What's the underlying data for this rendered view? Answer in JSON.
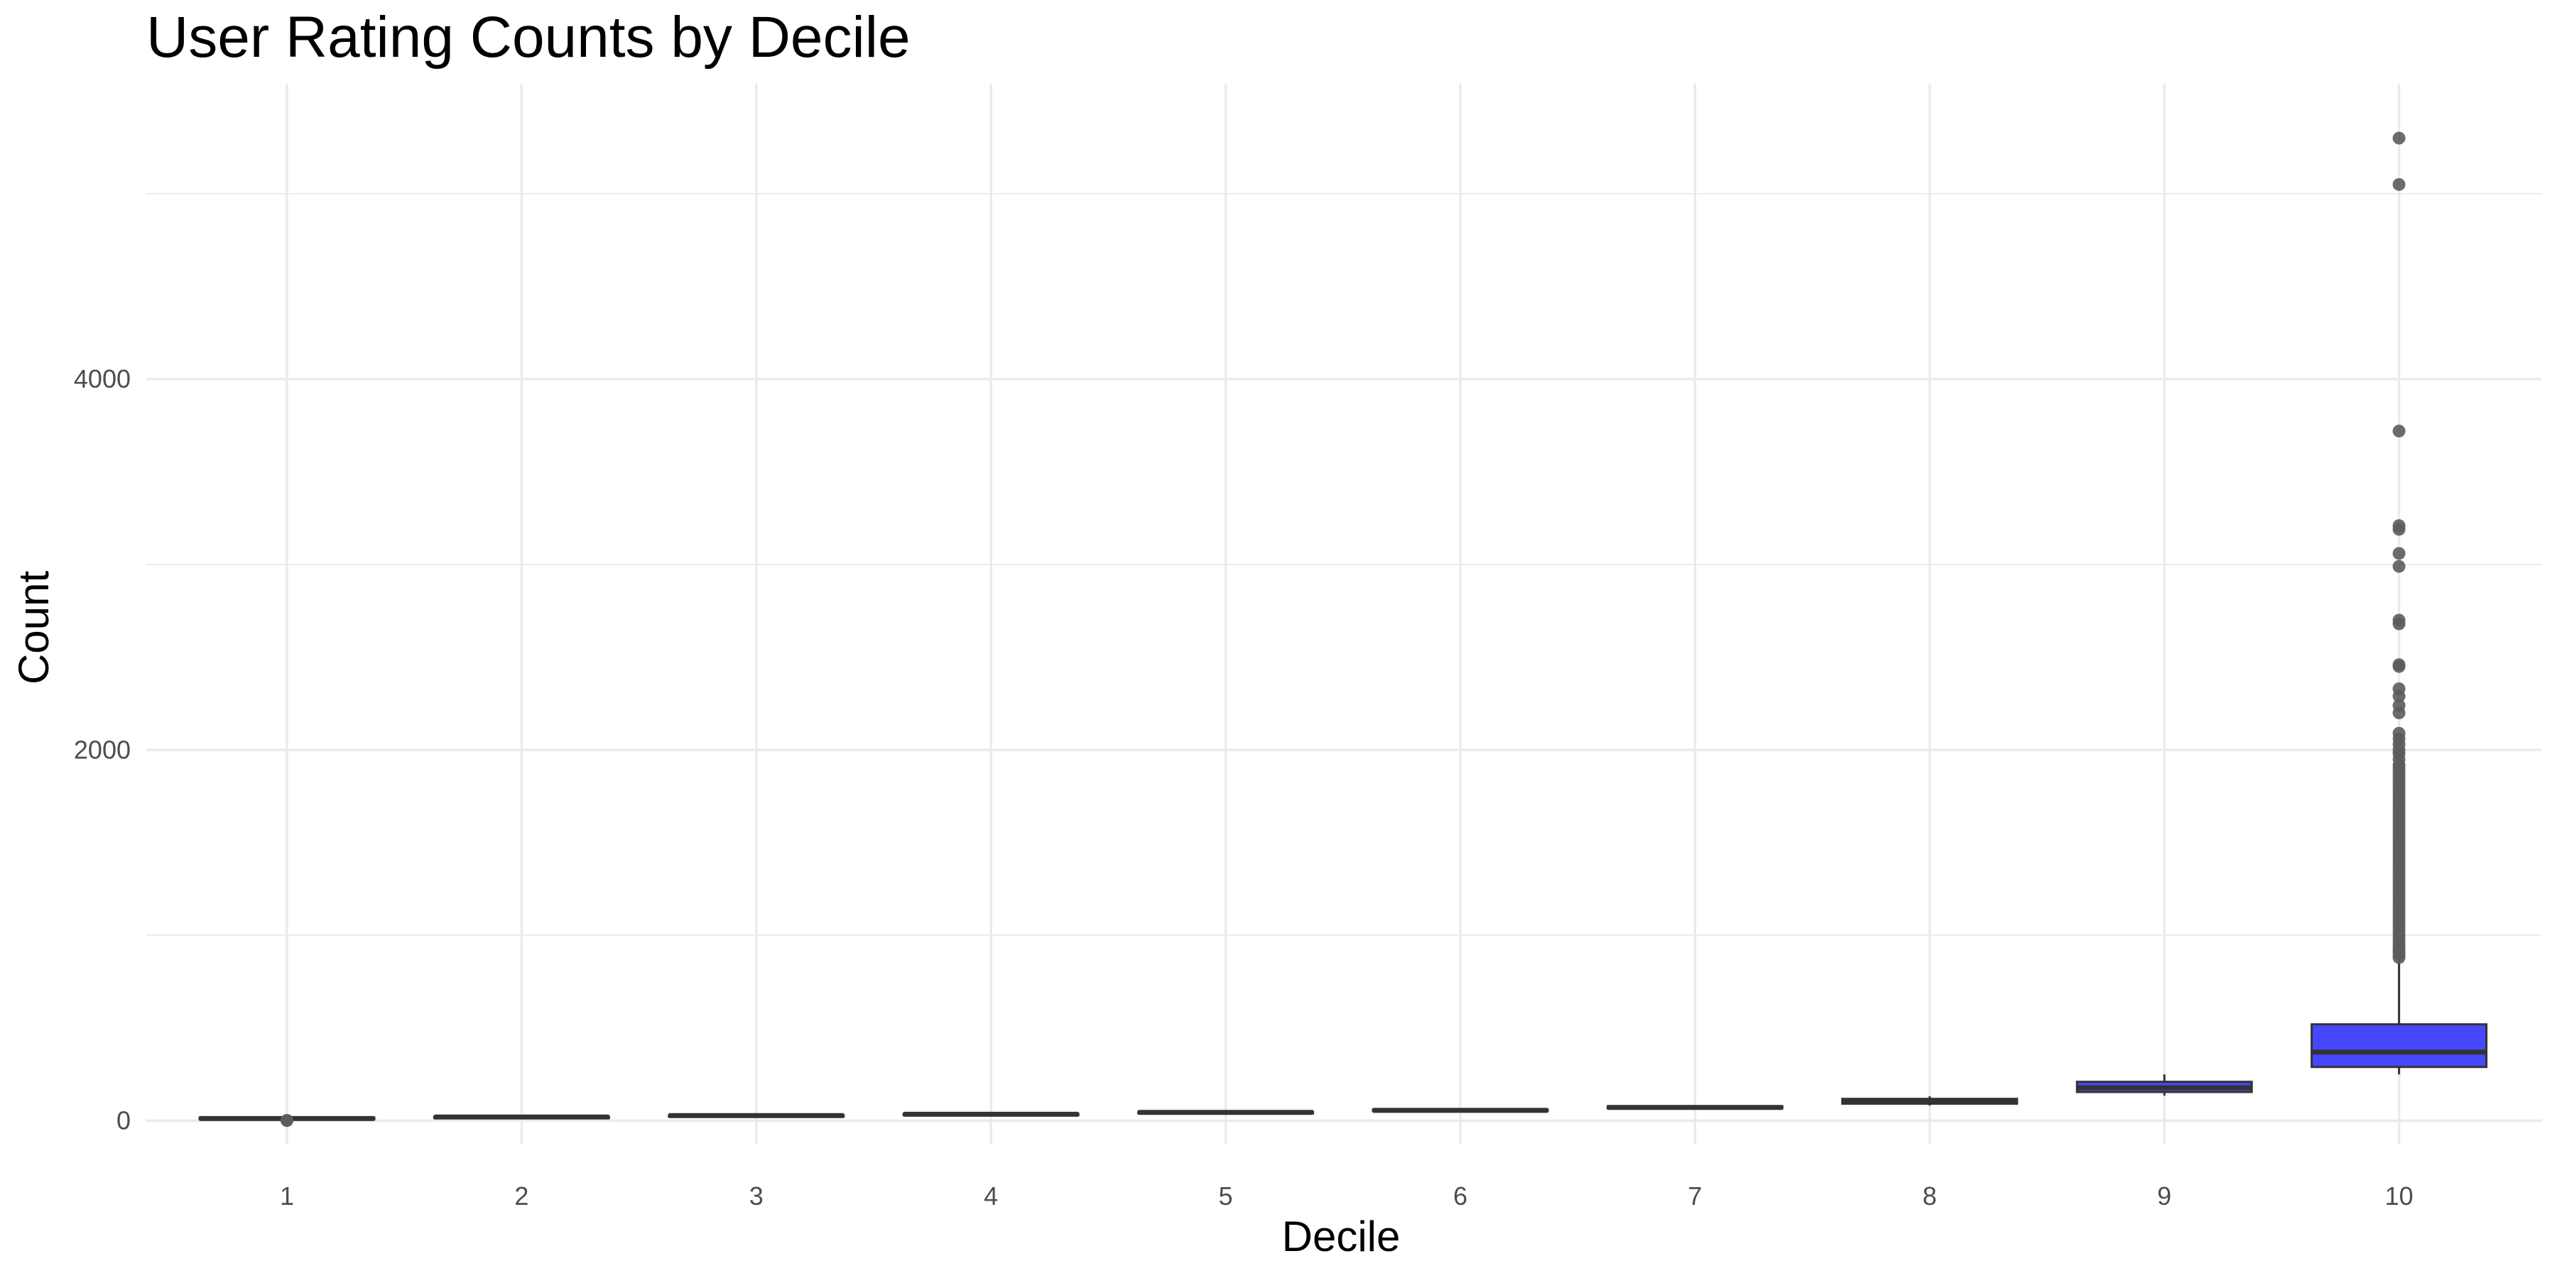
{
  "chart_data": {
    "type": "box",
    "title": "User Rating Counts by Decile",
    "xlabel": "Decile",
    "ylabel": "Count",
    "categories": [
      "1",
      "2",
      "3",
      "4",
      "5",
      "6",
      "7",
      "8",
      "9",
      "10"
    ],
    "yticks": [
      0,
      2000,
      4000
    ],
    "ylim": [
      -50,
      5400
    ],
    "grid": true,
    "legend": "none",
    "colors": {
      "box_fill": "#4747ff",
      "outlier": "#5c5c5c",
      "grid": "#ebebeb",
      "line": "#333333"
    },
    "boxes": [
      {
        "category": "1",
        "min": 5,
        "q1": 8,
        "median": 12,
        "q3": 17,
        "max": 22,
        "outliers": [
          1,
          2
        ]
      },
      {
        "category": "2",
        "min": 16,
        "q1": 18,
        "median": 20,
        "q3": 22,
        "max": 24,
        "outliers": []
      },
      {
        "category": "3",
        "min": 24,
        "q1": 26,
        "median": 28,
        "q3": 30,
        "max": 32,
        "outliers": []
      },
      {
        "category": "4",
        "min": 31,
        "q1": 33,
        "median": 35,
        "q3": 38,
        "max": 40,
        "outliers": []
      },
      {
        "category": "5",
        "min": 40,
        "q1": 42,
        "median": 45,
        "q3": 48,
        "max": 50,
        "outliers": []
      },
      {
        "category": "6",
        "min": 50,
        "q1": 53,
        "median": 56,
        "q3": 60,
        "max": 62,
        "outliers": []
      },
      {
        "category": "7",
        "min": 63,
        "q1": 67,
        "median": 72,
        "q3": 78,
        "max": 82,
        "outliers": []
      },
      {
        "category": "8",
        "min": 82,
        "q1": 92,
        "median": 102,
        "q3": 118,
        "max": 132,
        "outliers": []
      },
      {
        "category": "9",
        "min": 135,
        "q1": 155,
        "median": 178,
        "q3": 210,
        "max": 250,
        "outliers": []
      },
      {
        "category": "10",
        "min": 250,
        "q1": 290,
        "median": 370,
        "q3": 520,
        "max": 880,
        "outliers": [
          880,
          895,
          910,
          925,
          940,
          960,
          980,
          1000,
          1020,
          1040,
          1060,
          1080,
          1100,
          1120,
          1140,
          1160,
          1180,
          1200,
          1220,
          1240,
          1260,
          1280,
          1300,
          1320,
          1340,
          1360,
          1380,
          1400,
          1420,
          1440,
          1460,
          1480,
          1500,
          1520,
          1540,
          1560,
          1580,
          1600,
          1620,
          1640,
          1660,
          1680,
          1700,
          1720,
          1740,
          1760,
          1780,
          1800,
          1820,
          1840,
          1860,
          1880,
          1900,
          1920,
          1950,
          1980,
          2000,
          2030,
          2060,
          2090,
          2200,
          2240,
          2290,
          2330,
          2450,
          2460,
          2680,
          2700,
          2990,
          3060,
          3190,
          3210,
          3720,
          5050,
          5300
        ]
      }
    ]
  }
}
